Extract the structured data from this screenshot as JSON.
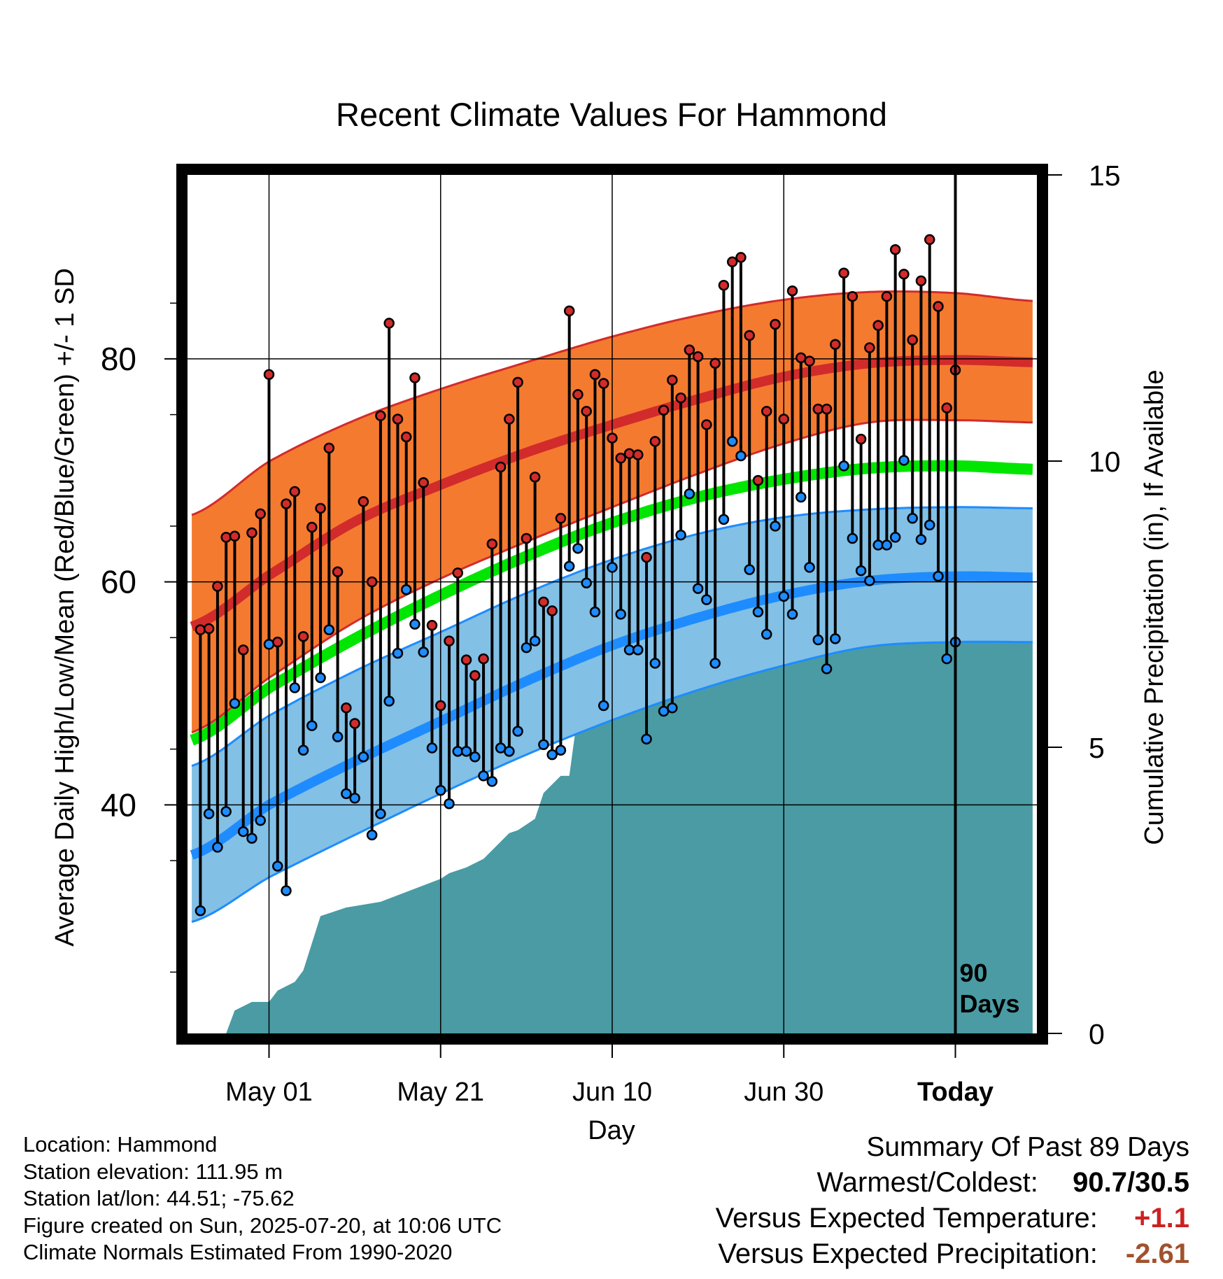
{
  "chart_data": {
    "type": "line",
    "title": "Recent Climate Values For Hammond",
    "xlabel": "Day",
    "ylabel_left": "Average Daily High/Low/Mean (Red/Blue/Green) +/- 1 SD",
    "ylabel_right": "Cumulative Precipitation (in), If Available",
    "x_tick_labels": [
      "May 01",
      "May 21",
      "Jun 10",
      "Jun 30",
      "Today"
    ],
    "y_ticks_left": [
      40,
      60,
      80
    ],
    "y_ticks_right": [
      0,
      5,
      10,
      15
    ],
    "today_label": [
      "90",
      "Days"
    ],
    "ylim_left": [
      19.5,
      96.5
    ],
    "ylim_right": [
      0,
      15
    ],
    "x_range_days": [
      -89.5,
      9.5
    ],
    "x_tick_days": [
      -80,
      -60,
      -40,
      -20,
      0
    ],
    "colors": {
      "high": "#d22b2b",
      "high_band": "#f47a30",
      "low": "#1e8cff",
      "low_band": "#82c0e6",
      "mean": "#00e600",
      "precip": "#4a9ba3",
      "warm_text": "#cc2222",
      "dry_text": "#a0522d"
    },
    "normals": {
      "days": [
        -89,
        -80,
        -70,
        -60,
        -50,
        -40,
        -30,
        -20,
        -10,
        0,
        9
      ],
      "high_mean": [
        56,
        60.6,
        65.4,
        68.7,
        71.6,
        74.1,
        76.4,
        78.4,
        79.6,
        79.9,
        79.7
      ],
      "high_sd_upper": [
        66,
        70.8,
        74.5,
        77.3,
        79.7,
        82,
        83.9,
        85.3,
        86,
        85.9,
        85.2
      ],
      "high_sd_lower": [
        46.5,
        51.4,
        56.4,
        60.3,
        63.6,
        66.7,
        69.7,
        72.4,
        74.3,
        74.5,
        74.3
      ],
      "mean": [
        45.8,
        50.5,
        54.9,
        58.8,
        62.3,
        65.3,
        67.6,
        69.2,
        70.2,
        70.4,
        70.1
      ],
      "low_mean": [
        35.5,
        40,
        43.9,
        47.5,
        51.1,
        54.3,
        56.8,
        58.8,
        60.1,
        60.5,
        60.4
      ],
      "low_sd_upper": [
        43.5,
        48,
        52,
        55.5,
        59,
        62,
        64.3,
        65.8,
        66.5,
        66.7,
        66.6
      ],
      "low_sd_lower": [
        29.5,
        33.5,
        37.3,
        41,
        44.5,
        47.6,
        50.3,
        52.5,
        54.2,
        54.6,
        54.6
      ]
    },
    "series": [
      {
        "name": "High",
        "values": [
          55.7,
          55.8,
          59.6,
          64.0,
          64.1,
          53.9,
          64.4,
          66.1,
          78.6,
          54.6,
          67.0,
          68.1,
          55.1,
          64.9,
          66.6,
          72.0,
          60.9,
          48.7,
          47.3,
          67.2,
          60.0,
          74.9,
          83.2,
          74.6,
          73.0,
          78.3,
          68.9,
          56.1,
          48.9,
          54.7,
          60.8,
          53.0,
          51.6,
          53.1,
          63.4,
          70.3,
          74.6,
          77.9,
          63.9,
          69.4,
          58.2,
          57.4,
          65.7,
          84.3,
          76.8,
          75.3,
          78.6,
          77.8,
          72.9,
          71.1,
          71.5,
          71.4,
          62.2,
          72.6,
          75.4,
          78.1,
          76.5,
          80.8,
          80.2,
          74.1,
          79.6,
          86.6,
          88.7,
          89.1,
          82.1,
          69.1,
          75.3,
          83.1,
          74.6,
          86.1,
          80.1,
          79.8,
          75.5,
          75.5,
          81.3,
          87.7,
          85.6,
          72.8,
          81.0,
          83.0,
          85.6,
          89.8,
          87.6,
          81.7,
          87.0,
          90.7,
          84.7,
          75.6,
          79.0
        ]
      },
      {
        "name": "Low",
        "values": [
          30.5,
          39.2,
          36.2,
          39.4,
          49.1,
          37.6,
          37.0,
          38.6,
          54.4,
          34.5,
          32.3,
          50.5,
          44.9,
          47.1,
          51.4,
          55.7,
          46.1,
          41.0,
          40.6,
          44.3,
          37.3,
          39.2,
          49.3,
          53.6,
          59.3,
          56.2,
          53.7,
          45.1,
          41.3,
          40.1,
          44.8,
          44.8,
          44.3,
          42.6,
          42.1,
          45.1,
          44.8,
          46.6,
          54.1,
          54.7,
          45.4,
          44.5,
          44.9,
          61.4,
          63.0,
          59.9,
          57.3,
          48.9,
          61.3,
          57.1,
          53.9,
          53.9,
          45.9,
          52.7,
          48.4,
          48.7,
          64.2,
          67.9,
          59.4,
          58.4,
          52.7,
          65.6,
          72.6,
          71.3,
          61.1,
          57.3,
          55.3,
          65.0,
          58.7,
          57.1,
          67.6,
          61.3,
          54.8,
          52.2,
          54.9,
          70.4,
          63.9,
          61.0,
          60.1,
          63.3,
          63.3,
          64.0,
          70.9,
          65.7,
          63.8,
          65.1,
          60.5,
          53.1,
          54.6
        ]
      },
      {
        "name": "Precipitation",
        "x": [
          -85,
          -84,
          -82,
          -80,
          -79,
          -77,
          -76,
          -74,
          -73,
          -72,
          -71,
          -69,
          -67,
          -60,
          -59,
          -57,
          -55,
          -52,
          -51,
          -49,
          -48,
          -46,
          -45,
          -44,
          -43,
          -42,
          -41,
          -40,
          -39,
          -30,
          -29,
          -28,
          -27,
          -26,
          -25,
          -24,
          -23,
          -22,
          -21,
          -20,
          -19,
          -18,
          -17,
          -15,
          -10,
          -8,
          -6,
          -5,
          -2,
          0,
          9
        ],
        "values": [
          0,
          0.4,
          0.55,
          0.55,
          0.75,
          0.9,
          1.1,
          2.05,
          2.1,
          2.15,
          2.2,
          2.25,
          2.3,
          2.7,
          2.8,
          2.9,
          3.05,
          3.5,
          3.55,
          3.75,
          4.2,
          4.5,
          4.5,
          5.6,
          5.65,
          5.7,
          5.75,
          5.8,
          6.1,
          6.2,
          6.3,
          6.5,
          6.6,
          6.7,
          7.0,
          7.2,
          7.3,
          7.4,
          7.45,
          7.55,
          7.65,
          7.75,
          7.8,
          7.8,
          7.85,
          7.9,
          7.9,
          7.9,
          7.95,
          8.05,
          8.05
        ]
      }
    ]
  },
  "footer": {
    "location": "Location: Hammond",
    "elevation": "Station elevation: 111.95 m",
    "latlon": "Station lat/lon: 44.51; -75.62",
    "created": "Figure created on Sun, 2025-07-20, at 10:06 UTC",
    "normals": "Climate Normals Estimated From 1990-2020"
  },
  "summary": {
    "title": "Summary Of Past 89 Days",
    "warm_cold_label": "Warmest/Coldest:",
    "warm_cold_value": "90.7/30.5",
    "temp_label": "Versus Expected Temperature:",
    "temp_value": "+1.1",
    "precip_label": "Versus Expected Precipitation:",
    "precip_value": "-2.61"
  }
}
